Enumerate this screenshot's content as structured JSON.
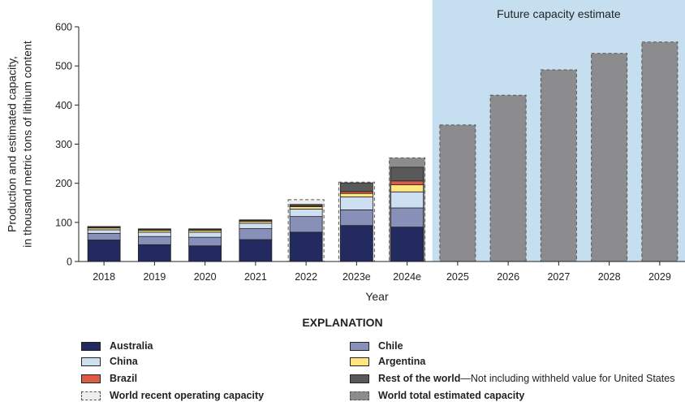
{
  "chart_data": {
    "type": "bar",
    "stacked": true,
    "title": "",
    "shaded_region_label": "Future capacity estimate",
    "xlabel": "Year",
    "ylabel_lines": [
      "Production and estimated capacity,",
      "in thousand metric tons of lithium content"
    ],
    "ylim": [
      0,
      600
    ],
    "yticks": [
      0,
      100,
      200,
      300,
      400,
      500,
      600
    ],
    "categories": [
      "2018",
      "2019",
      "2020",
      "2021",
      "2022",
      "2023e",
      "2024e",
      "2025",
      "2026",
      "2027",
      "2028",
      "2029"
    ],
    "series": [
      {
        "name": "Australia",
        "color": "#232a60",
        "values": [
          55,
          43,
          40,
          56,
          75,
          92,
          88,
          0,
          0,
          0,
          0,
          0
        ]
      },
      {
        "name": "Chile",
        "color": "#8890b9",
        "values": [
          17,
          21,
          22,
          28,
          40,
          40,
          49,
          0,
          0,
          0,
          0,
          0
        ]
      },
      {
        "name": "China",
        "color": "#cfdff2",
        "values": [
          9,
          11,
          13,
          14,
          19,
          33,
          41,
          0,
          0,
          0,
          0,
          0
        ]
      },
      {
        "name": "Argentina",
        "color": "#ffe680",
        "values": [
          6,
          6,
          6,
          6,
          6,
          9,
          18,
          0,
          0,
          0,
          0,
          0
        ]
      },
      {
        "name": "Brazil",
        "color": "#dd5a45",
        "values": [
          0.5,
          0.5,
          0.5,
          0.5,
          2,
          5,
          10,
          0,
          0,
          0,
          0,
          0
        ]
      },
      {
        "name": "Rest of the world",
        "color": "#595959",
        "values": [
          2,
          2,
          2,
          2,
          4,
          22,
          35,
          0,
          0,
          0,
          0,
          0
        ]
      }
    ],
    "capacity": {
      "operating": {
        "name": "World recent operating capacity",
        "color": "#eeeeee",
        "values": [
          null,
          null,
          null,
          null,
          158,
          203,
          null,
          null,
          null,
          null,
          null,
          null
        ]
      },
      "estimated": {
        "name": "World total estimated capacity",
        "color": "#8c8c8e",
        "values": [
          null,
          null,
          null,
          null,
          null,
          null,
          265,
          349,
          425,
          490,
          532,
          561
        ]
      }
    },
    "colors": {
      "future_region": "#c6dff0",
      "axis": "#222222"
    }
  },
  "legend": {
    "title": "EXPLANATION",
    "items": [
      {
        "label": "Australia",
        "note": "",
        "color": "#232a60",
        "style": "solid"
      },
      {
        "label": "China",
        "note": "",
        "color": "#cfdff2",
        "style": "solid"
      },
      {
        "label": "Brazil",
        "note": "",
        "color": "#dd5a45",
        "style": "solid"
      },
      {
        "label": "World recent operating capacity",
        "note": "",
        "color": "#eeeeee",
        "style": "dashed"
      },
      {
        "label": "Chile",
        "note": "",
        "color": "#8890b9",
        "style": "solid"
      },
      {
        "label": "Argentina",
        "note": "",
        "color": "#ffe680",
        "style": "solid"
      },
      {
        "label": "Rest of the world",
        "note": "—Not including withheld value for United States",
        "color": "#595959",
        "style": "solid"
      },
      {
        "label": "World total estimated capacity",
        "note": "",
        "color": "#8c8c8e",
        "style": "dashed"
      }
    ]
  }
}
